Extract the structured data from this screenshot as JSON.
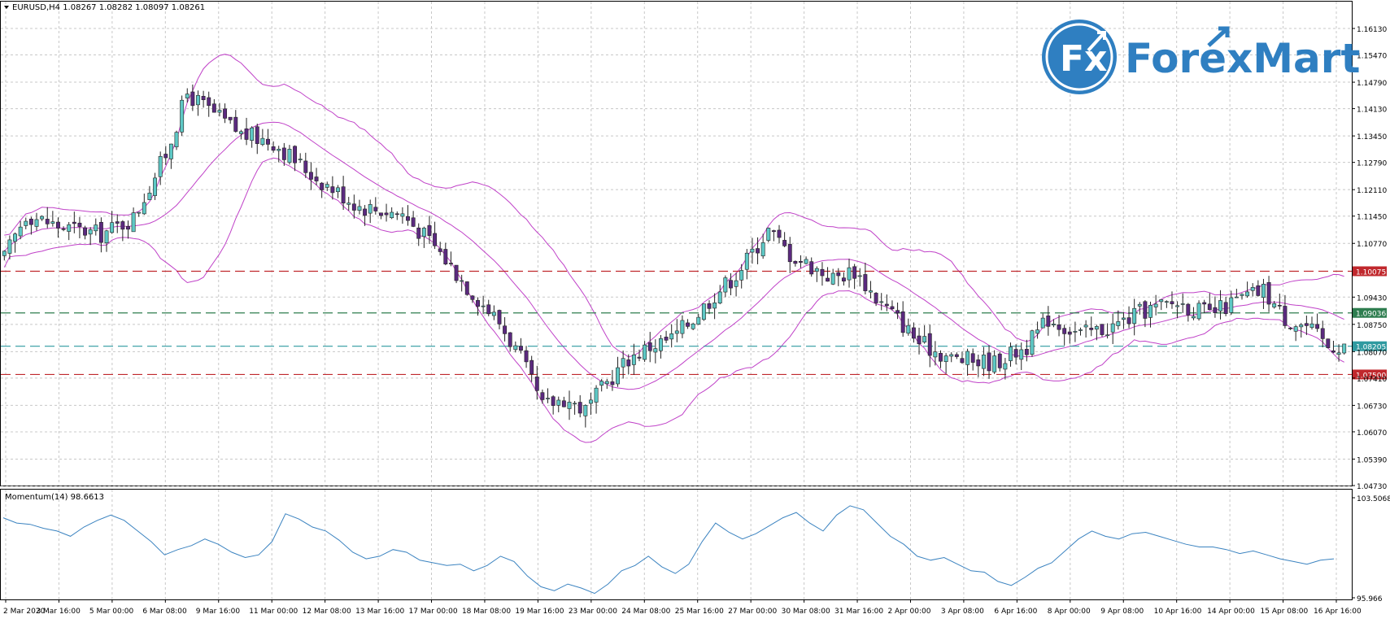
{
  "window": {
    "symbol_header": "EURUSD,H4  1.08267 1.08282 1.08097 1.08261",
    "indicator_header": "Momentum(14) 98.6613"
  },
  "logo": {
    "mark_text": "Fx",
    "brand_text": "ForexMart",
    "brand_color": "#2f7fc1"
  },
  "colors": {
    "bull_body": "#5ec8c5",
    "bear_body": "#5b2a7f",
    "wick": "#222222",
    "bollinger": "#c042c8",
    "resistance_line": "#c0282d",
    "support_line": "#c0282d",
    "pivot_line": "#2e7d4f",
    "current_price_line": "#2f9aa0",
    "momentum_line": "#3b83c0",
    "grid": "#c8c8c8"
  },
  "chart_data": [
    {
      "type": "candlestick",
      "title": "EURUSD,H4",
      "ohlc_header": "1.08267 1.08282 1.08097 1.08261",
      "overlays": [
        "Bollinger Bands (upper, middle, lower)"
      ],
      "y_ticks": [
        "1.16130",
        "1.15470",
        "1.14790",
        "1.14130",
        "1.13450",
        "1.12790",
        "1.12110",
        "1.11450",
        "1.10770",
        "1.09430",
        "1.08750",
        "1.08070",
        "1.07410",
        "1.06730",
        "1.06070",
        "1.05390",
        "1.04730"
      ],
      "ylim": [
        1.0473,
        1.1613
      ],
      "x_ticks": [
        "2 Mar 2020",
        "3 Mar 16:00",
        "5 Mar 00:00",
        "6 Mar 08:00",
        "9 Mar 16:00",
        "11 Mar 00:00",
        "12 Mar 08:00",
        "13 Mar 16:00",
        "17 Mar 00:00",
        "18 Mar 08:00",
        "19 Mar 16:00",
        "23 Mar 00:00",
        "24 Mar 08:00",
        "25 Mar 16:00",
        "27 Mar 00:00",
        "30 Mar 08:00",
        "31 Mar 16:00",
        "2 Apr 00:00",
        "3 Apr 08:00",
        "6 Apr 16:00",
        "8 Apr 00:00",
        "9 Apr 08:00",
        "10 Apr 16:00",
        "14 Apr 00:00",
        "15 Apr 08:00",
        "16 Apr 16:00"
      ],
      "horizontal_levels": [
        {
          "label": "1.10075",
          "value": 1.10075,
          "style": "dashed",
          "color_key": "resistance_line"
        },
        {
          "label": "1.09036",
          "value": 1.09036,
          "style": "dashed",
          "color_key": "pivot_line"
        },
        {
          "label": "1.08205",
          "value": 1.08205,
          "style": "dashed",
          "color_key": "current_price_line"
        },
        {
          "label": "1.07500",
          "value": 1.075,
          "style": "dashed",
          "color_key": "support_line"
        }
      ],
      "path_points": [
        [
          0,
          1.104
        ],
        [
          4,
          1.115
        ],
        [
          10,
          1.112
        ],
        [
          18,
          1.11
        ],
        [
          24,
          1.114
        ],
        [
          30,
          1.13
        ],
        [
          34,
          1.145
        ],
        [
          38,
          1.141
        ],
        [
          44,
          1.135
        ],
        [
          50,
          1.133
        ],
        [
          58,
          1.124
        ],
        [
          66,
          1.117
        ],
        [
          74,
          1.115
        ],
        [
          80,
          1.107
        ],
        [
          86,
          1.097
        ],
        [
          92,
          1.088
        ],
        [
          96,
          1.079
        ],
        [
          100,
          1.067
        ],
        [
          104,
          1.069
        ],
        [
          108,
          1.066
        ],
        [
          112,
          1.073
        ],
        [
          116,
          1.079
        ],
        [
          120,
          1.082
        ],
        [
          124,
          1.084
        ],
        [
          128,
          1.089
        ],
        [
          132,
          1.095
        ],
        [
          136,
          1.1
        ],
        [
          142,
          1.111
        ],
        [
          146,
          1.105
        ],
        [
          150,
          1.102
        ],
        [
          154,
          1.099
        ],
        [
          158,
          1.101
        ],
        [
          162,
          1.094
        ],
        [
          166,
          1.089
        ],
        [
          170,
          1.083
        ],
        [
          176,
          1.079
        ],
        [
          184,
          1.078
        ],
        [
          190,
          1.082
        ],
        [
          194,
          1.089
        ],
        [
          200,
          1.085
        ],
        [
          206,
          1.087
        ],
        [
          212,
          1.091
        ],
        [
          218,
          1.093
        ],
        [
          224,
          1.09
        ],
        [
          230,
          1.094
        ],
        [
          234,
          1.096
        ],
        [
          238,
          1.089
        ],
        [
          242,
          1.087
        ],
        [
          246,
          1.082
        ],
        [
          249,
          1.0826
        ]
      ],
      "last_close": 1.08261
    },
    {
      "type": "line",
      "title": "Momentum(14)",
      "current_value": 98.6613,
      "y_ticks": [
        "103.5068",
        "95.966"
      ],
      "ylim": [
        95.966,
        103.5068
      ],
      "series": [
        {
          "name": "Momentum(14)",
          "values": [
            102.0,
            101.6,
            101.5,
            101.2,
            101.0,
            100.6,
            101.3,
            101.8,
            102.2,
            101.8,
            101.0,
            100.2,
            99.2,
            99.6,
            99.9,
            100.4,
            100.0,
            99.4,
            99.0,
            99.2,
            100.2,
            102.3,
            101.9,
            101.3,
            101.0,
            100.3,
            99.4,
            98.9,
            99.1,
            99.6,
            99.4,
            98.8,
            98.6,
            98.4,
            98.5,
            98.0,
            98.4,
            99.1,
            98.7,
            97.6,
            96.8,
            96.5,
            97.0,
            96.7,
            96.3,
            97.0,
            98.0,
            98.4,
            99.1,
            98.3,
            97.8,
            98.5,
            100.2,
            101.6,
            100.9,
            100.4,
            100.8,
            101.4,
            102.0,
            102.4,
            101.6,
            101.0,
            102.2,
            102.9,
            102.6,
            101.6,
            100.6,
            100.0,
            99.1,
            98.8,
            99.0,
            98.5,
            98.0,
            97.9,
            97.2,
            96.9,
            97.5,
            98.2,
            98.6,
            99.5,
            100.4,
            101.0,
            100.6,
            100.4,
            100.8,
            100.9,
            100.6,
            100.3,
            100.0,
            99.8,
            99.8,
            99.6,
            99.3,
            99.5,
            99.2,
            98.9,
            98.7,
            98.5,
            98.8,
            98.9
          ]
        }
      ]
    }
  ]
}
